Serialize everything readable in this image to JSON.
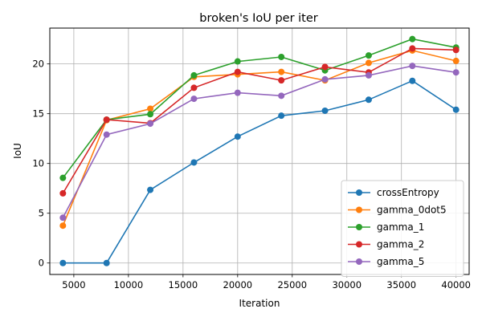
{
  "chart_data": {
    "type": "line",
    "title": "broken's IoU per iter",
    "xlabel": "Iteration",
    "ylabel": "IoU",
    "x": [
      4000,
      8000,
      12000,
      16000,
      20000,
      24000,
      28000,
      32000,
      36000,
      40000
    ],
    "xlim": [
      2800,
      41200
    ],
    "ylim": [
      -1.15,
      23.6
    ],
    "xticks": [
      5000,
      10000,
      15000,
      20000,
      25000,
      30000,
      35000,
      40000
    ],
    "yticks": [
      0,
      5,
      10,
      15,
      20
    ],
    "grid": true,
    "legend_position": "lower-right",
    "series": [
      {
        "name": "crossEntropy",
        "color": "#1f77b4",
        "values": [
          0.0,
          0.0,
          7.35,
          10.1,
          12.7,
          14.8,
          15.3,
          16.4,
          18.3,
          15.4
        ]
      },
      {
        "name": "gamma_0dot5",
        "color": "#ff7f0e",
        "values": [
          3.75,
          14.35,
          15.5,
          18.7,
          18.95,
          19.2,
          18.35,
          20.1,
          21.35,
          20.3
        ]
      },
      {
        "name": "gamma_1",
        "color": "#2ca02c",
        "values": [
          8.55,
          14.4,
          14.95,
          18.85,
          20.25,
          20.7,
          19.35,
          20.85,
          22.5,
          21.65
        ]
      },
      {
        "name": "gamma_2",
        "color": "#d62728",
        "values": [
          7.0,
          14.4,
          14.05,
          17.6,
          19.2,
          18.35,
          19.7,
          19.15,
          21.55,
          21.4
        ]
      },
      {
        "name": "gamma_5",
        "color": "#9467bd",
        "values": [
          4.55,
          12.9,
          14.0,
          16.5,
          17.1,
          16.8,
          18.45,
          18.85,
          19.8,
          19.15
        ]
      }
    ]
  }
}
